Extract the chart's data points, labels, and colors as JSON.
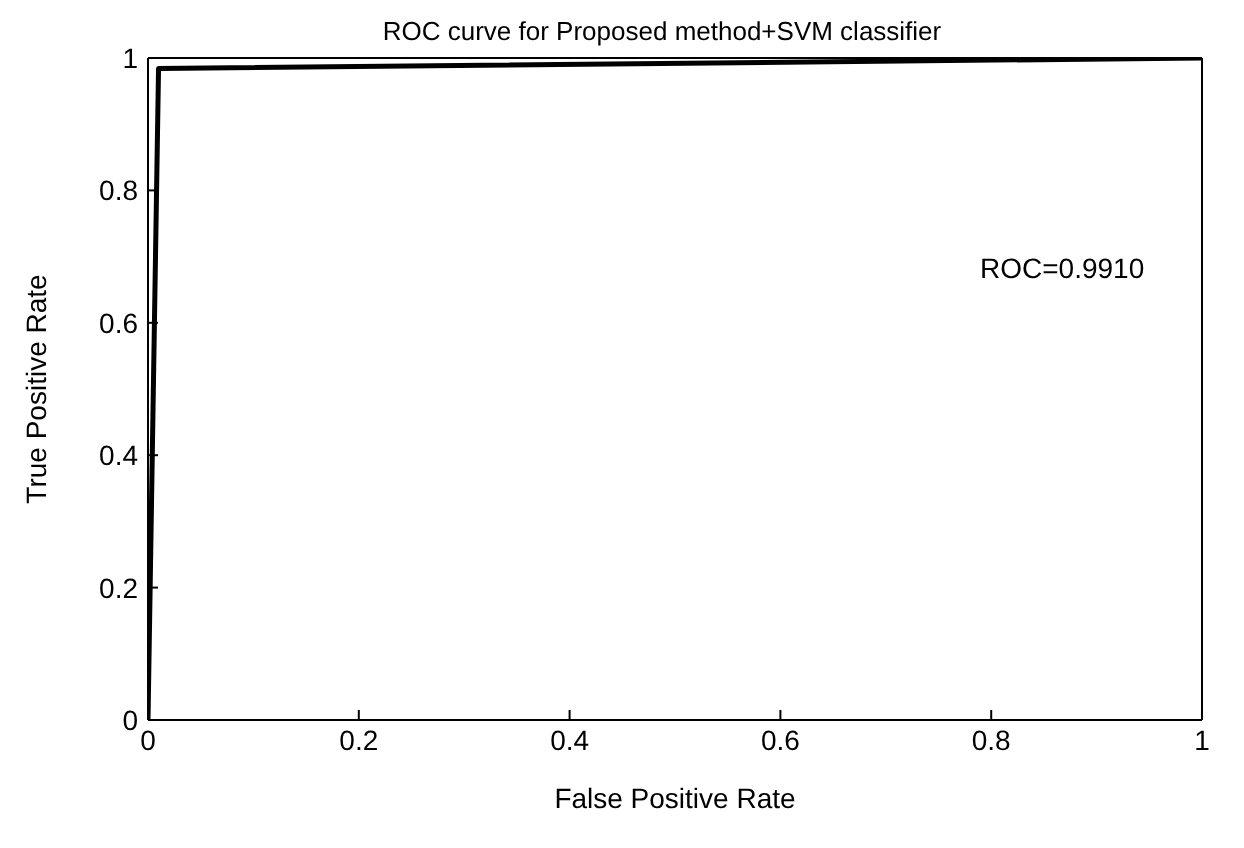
{
  "chart_data": {
    "type": "line",
    "title": "ROC curve for Proposed method+SVM classifier",
    "xlabel": "False Positive Rate",
    "ylabel": "True Positive Rate",
    "x": [
      0,
      0.01,
      1
    ],
    "series": [
      {
        "color": "#000000",
        "values": [
          0,
          0.984,
          1
        ]
      }
    ],
    "xlim": [
      0,
      1
    ],
    "ylim": [
      0,
      1
    ],
    "xticks": [
      0,
      0.2,
      0.4,
      0.6,
      0.8,
      1
    ],
    "yticks": [
      0,
      0.2,
      0.4,
      0.6,
      0.8,
      1
    ],
    "marker": "none",
    "line_style": "solid",
    "annotations": [
      "ROC=0.9910"
    ]
  }
}
